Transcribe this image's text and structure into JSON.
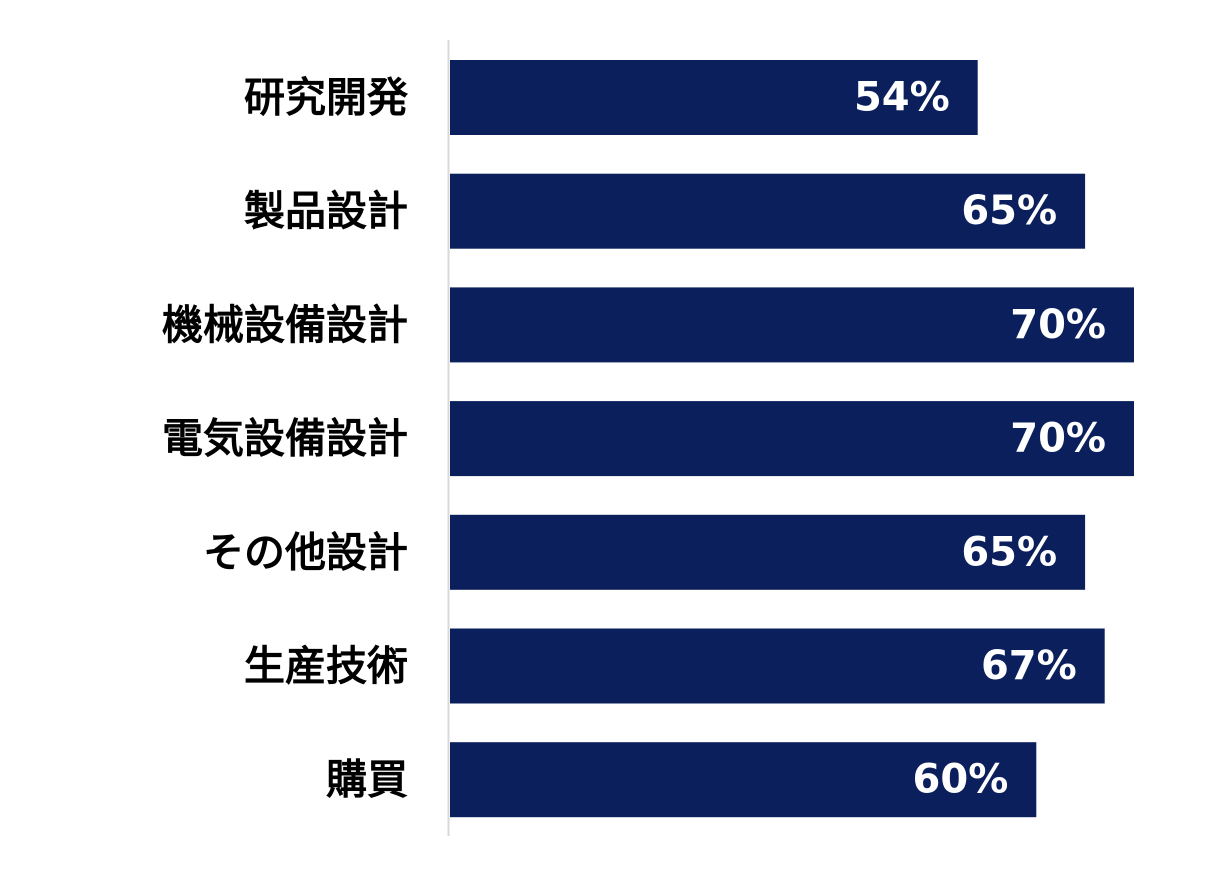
{
  "chart_data": {
    "type": "bar",
    "orientation": "horizontal",
    "categories": [
      "研究開発",
      "製品設計",
      "機械設備設計",
      "電気設備設計",
      "その他設計",
      "生産技術",
      "購買"
    ],
    "values": [
      54,
      65,
      70,
      70,
      65,
      67,
      60
    ],
    "value_labels": [
      "54%",
      "65%",
      "70%",
      "70%",
      "65%",
      "67%",
      "60%"
    ],
    "unit": "%",
    "title": "",
    "xlabel": "",
    "ylabel": "",
    "xlim": [
      0,
      70
    ],
    "grid": false,
    "legend": "none",
    "colors": {
      "bar": "#0b1f5c",
      "value_label": "#ffffff",
      "category_label": "#000000",
      "axis_line": "#d9d9d9"
    }
  }
}
